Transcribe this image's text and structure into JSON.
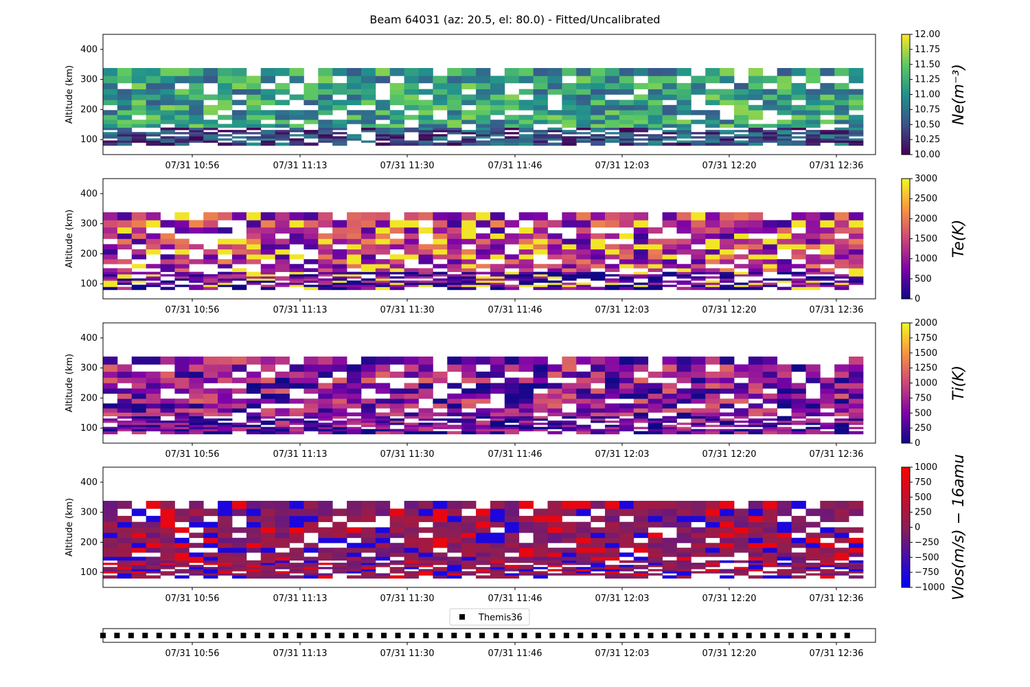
{
  "figure": {
    "title": "Beam 64031 (az: 20.5, el: 80.0) - Fitted/Uncalibrated"
  },
  "time_ticks": [
    "07/31 10:56",
    "07/31 11:13",
    "07/31 11:30",
    "07/31 11:46",
    "07/31 12:03",
    "07/31 12:20",
    "07/31 12:36"
  ],
  "colormaps": {
    "viridis": [
      "#440154",
      "#3b528b",
      "#21918c",
      "#5ec962",
      "#fde725"
    ],
    "plasma": [
      "#0d0887",
      "#7e03a8",
      "#cc4778",
      "#f89540",
      "#f0f921"
    ],
    "bwr": [
      "#0000ff",
      "#8a1f55",
      "#ff0000"
    ]
  },
  "chart_data": [
    {
      "type": "heatmap",
      "name": "Ne",
      "ylabel": "Altitude (km)",
      "ylim": [
        50,
        450
      ],
      "yticks": [
        "100",
        "200",
        "300",
        "400"
      ],
      "x_range": [
        "07/31 10:43",
        "07/31 12:43"
      ],
      "colorbar_label": "Ne(m⁻³)",
      "colormap": "viridis",
      "clim": [
        10.0,
        12.0
      ],
      "colorbar_ticks": [
        "10.00",
        "10.25",
        "10.50",
        "10.75",
        "11.00",
        "11.25",
        "11.50",
        "11.75",
        "12.00"
      ],
      "typical_values": {
        "F_region": 11.1,
        "E_region": 10.5
      }
    },
    {
      "type": "heatmap",
      "name": "Te",
      "ylabel": "Altitude (km)",
      "ylim": [
        50,
        450
      ],
      "yticks": [
        "100",
        "200",
        "300",
        "400"
      ],
      "x_range": [
        "07/31 10:43",
        "07/31 12:43"
      ],
      "colorbar_label": "Te(K)",
      "colormap": "plasma",
      "clim": [
        0,
        3000
      ],
      "colorbar_ticks": [
        "0",
        "500",
        "1000",
        "1500",
        "2000",
        "2500",
        "3000"
      ],
      "typical_values": {
        "F_region": 1200,
        "E_region": 500
      }
    },
    {
      "type": "heatmap",
      "name": "Ti",
      "ylabel": "Altitude (km)",
      "ylim": [
        50,
        450
      ],
      "yticks": [
        "100",
        "200",
        "300",
        "400"
      ],
      "x_range": [
        "07/31 10:43",
        "07/31 12:43"
      ],
      "colorbar_label": "Ti(K)",
      "colormap": "plasma",
      "clim": [
        0,
        2000
      ],
      "colorbar_ticks": [
        "0",
        "250",
        "500",
        "750",
        "1000",
        "1250",
        "1500",
        "1750",
        "2000"
      ],
      "typical_values": {
        "F_region": 600,
        "E_region": 400
      }
    },
    {
      "type": "heatmap",
      "name": "Vlos",
      "ylabel": "Altitude (km)",
      "ylim": [
        50,
        450
      ],
      "yticks": [
        "100",
        "200",
        "300",
        "400"
      ],
      "x_range": [
        "07/31 10:43",
        "07/31 12:43"
      ],
      "colorbar_label": "Vlos(m/s) − 16amu",
      "colormap": "bwr",
      "clim": [
        -1000,
        1000
      ],
      "colorbar_ticks": [
        "−1000",
        "−750",
        "−500",
        "−250",
        "0",
        "250",
        "500",
        "750",
        "1000"
      ],
      "typical_values": {
        "all": 0
      }
    },
    {
      "type": "scatter",
      "name": "Themis36",
      "legend": "Themis36",
      "marker": "square",
      "color": "#000000",
      "x_range": [
        "07/31 10:43",
        "07/31 12:43"
      ],
      "cadence_minutes": 2,
      "y": 0
    }
  ]
}
